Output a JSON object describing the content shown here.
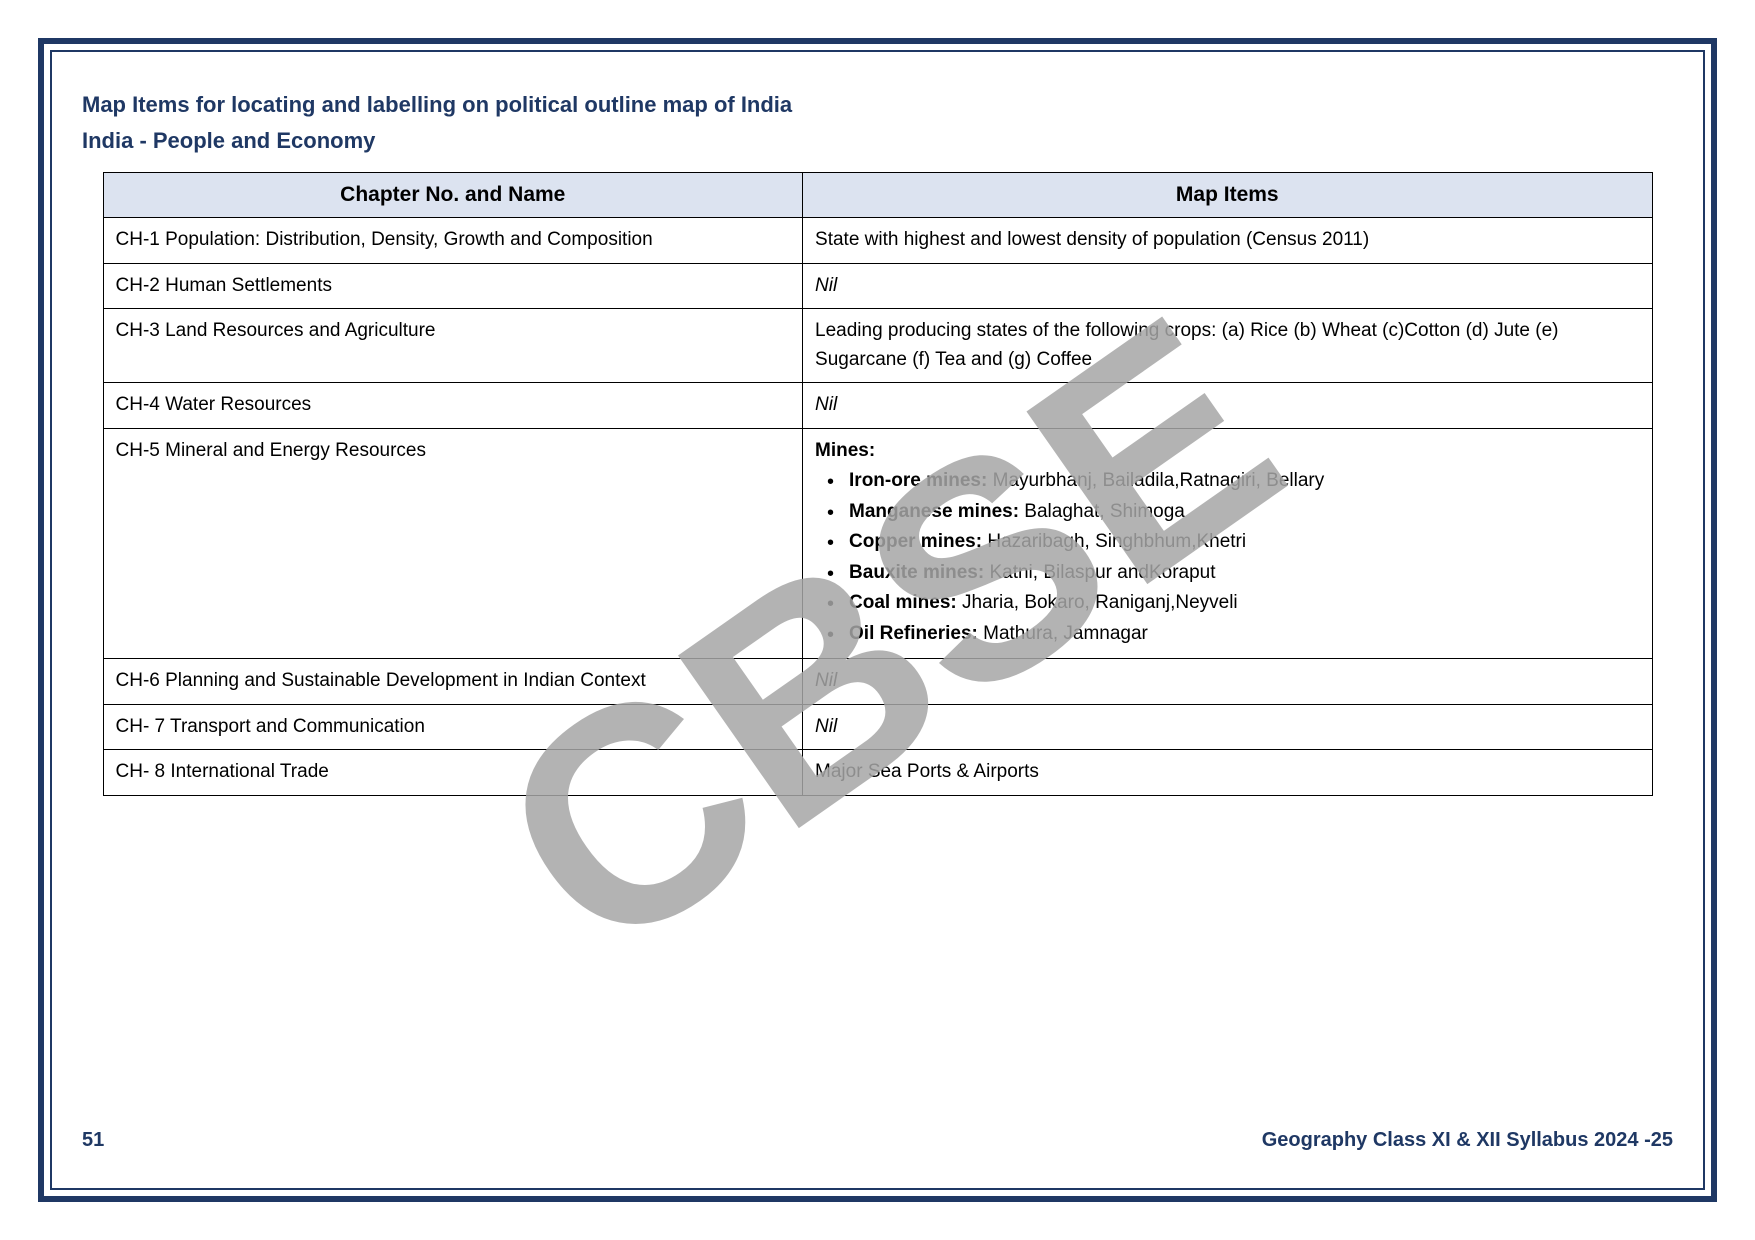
{
  "titles": {
    "line1": "Map Items for locating and labelling on political outline map of India",
    "line2": "India - People and Economy"
  },
  "table": {
    "headers": {
      "col1": "Chapter No. and Name",
      "col2": "Map Items"
    },
    "rows": [
      {
        "chapter": "CH-1 Population: Distribution, Density, Growth and Composition",
        "items": "State with highest and lowest density of population (Census 2011)"
      },
      {
        "chapter": "CH-2 Human Settlements",
        "items_nil": "Nil"
      },
      {
        "chapter": "CH-3 Land Resources and Agriculture",
        "items": "Leading producing states of the following crops: (a) Rice (b) Wheat (c)Cotton (d) Jute (e) Sugarcane (f) Tea and (g) Coffee"
      },
      {
        "chapter": "CH-4 Water Resources",
        "items_nil": "Nil"
      },
      {
        "chapter": "CH-5 Mineral and Energy Resources",
        "mines_heading": "Mines:",
        "mines": [
          {
            "label": "Iron-ore mines:",
            "text": " Mayurbhanj, Bailadila,Ratnagiri, Bellary"
          },
          {
            "label": "Manganese mines:",
            "text": " Balaghat, Shimoga"
          },
          {
            "label": "Copper mines:",
            "text": " Hazaribagh, Singhbhum,Khetri"
          },
          {
            "label": "Bauxite mines:",
            "text": " Katni, Bilaspur andKoraput"
          },
          {
            "label": "Coal mines:",
            "text": " Jharia, Bokaro, Raniganj,Neyveli"
          },
          {
            "label": "Oil Refineries:",
            "text": " Mathura, Jamnagar"
          }
        ]
      },
      {
        "chapter": "CH-6 Planning and Sustainable Development in Indian Context",
        "items_nil": "Nil"
      },
      {
        "chapter": "CH- 7 Transport and Communication",
        "items_nil": "Nil"
      },
      {
        "chapter": "CH- 8 International Trade",
        "items": "Major Sea Ports & Airports"
      }
    ]
  },
  "footer": {
    "page": "51",
    "text": "Geography Class XI & XII Syllabus 2024 -25"
  },
  "watermark": {
    "text": "CBSE",
    "color": "#a6a6a6",
    "opacity": 0.85,
    "angle": -35
  },
  "colors": {
    "border": "#1f3864",
    "title": "#1f3864",
    "header_bg": "#dce3f0",
    "cell_border": "#000000",
    "text": "#000000"
  }
}
